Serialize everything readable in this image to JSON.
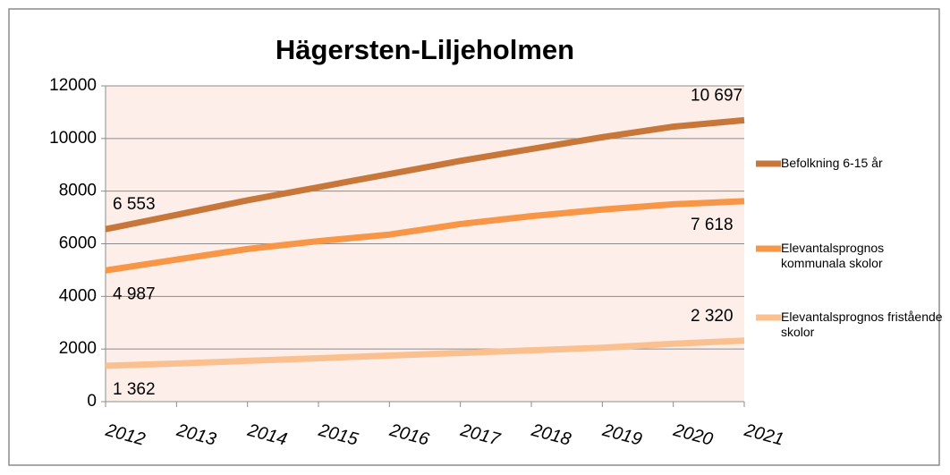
{
  "chart_data": {
    "type": "line",
    "title": "Hägersten-Liljeholmen",
    "categories": [
      "2012",
      "2013",
      "2014",
      "2015",
      "2016",
      "2017",
      "2018",
      "2019",
      "2020",
      "2021"
    ],
    "series": [
      {
        "name": "Befolkning 6-15 år",
        "color": "#c8773a",
        "values": [
          6553,
          7100,
          7650,
          8150,
          8650,
          9150,
          9600,
          10050,
          10450,
          10697
        ],
        "value_labels": [
          "6 553",
          null,
          null,
          null,
          null,
          null,
          null,
          null,
          null,
          "10 697"
        ]
      },
      {
        "name": "Elevantalsprognos kommunala skolor",
        "color": "#f79646",
        "values": [
          4987,
          5400,
          5800,
          6100,
          6350,
          6750,
          7050,
          7300,
          7500,
          7618
        ],
        "value_labels": [
          "4 987",
          null,
          null,
          null,
          null,
          null,
          null,
          null,
          null,
          "7 618"
        ]
      },
      {
        "name": "Elevantalsprognos fristående skolor",
        "color": "#fac090",
        "values": [
          1362,
          1450,
          1550,
          1650,
          1750,
          1850,
          1950,
          2050,
          2200,
          2320
        ],
        "value_labels": [
          "1 362",
          null,
          null,
          null,
          null,
          null,
          null,
          null,
          null,
          "2 320"
        ]
      }
    ],
    "ylim": [
      0,
      12000
    ],
    "yticks": [
      0,
      2000,
      4000,
      6000,
      8000,
      10000,
      12000
    ],
    "grid": true,
    "legend": "right"
  }
}
